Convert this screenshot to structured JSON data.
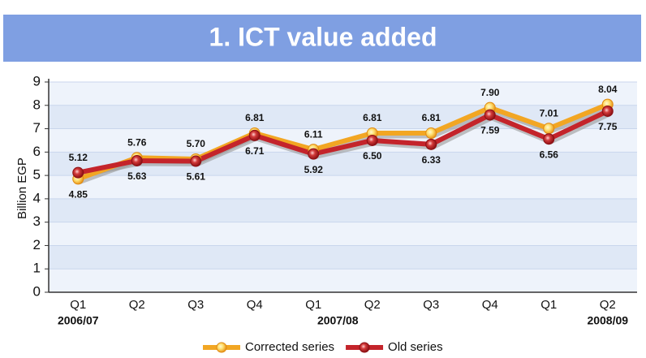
{
  "chart_data": {
    "type": "line",
    "title": "1. ICT value added",
    "y_label": "Billion EGP",
    "categories": [
      "Q1",
      "Q2",
      "Q3",
      "Q4",
      "Q1",
      "Q2",
      "Q3",
      "Q4",
      "Q1",
      "Q2"
    ],
    "year_labels": [
      "2006/07",
      null,
      null,
      null,
      "2007/08",
      null,
      null,
      null,
      null,
      "2008/09"
    ],
    "series": [
      {
        "name": "Corrected series",
        "color": "#f2a623",
        "values": [
          4.85,
          5.76,
          5.7,
          6.81,
          6.11,
          6.81,
          6.81,
          7.9,
          7.01,
          8.04
        ],
        "value_labels": [
          "4.85",
          "5.76",
          "5.70",
          "6.81",
          "6.11",
          "6.81",
          "6.81",
          "7.90",
          "7.01",
          "8.04"
        ]
      },
      {
        "name": "Old series",
        "color": "#c4242b",
        "values": [
          5.12,
          5.63,
          5.61,
          6.71,
          5.92,
          6.5,
          6.33,
          7.59,
          6.56,
          7.75
        ],
        "value_labels": [
          "5.12",
          "5.63",
          "5.61",
          "6.71",
          "5.92",
          "6.50",
          "6.33",
          "7.59",
          "6.56",
          "7.75"
        ]
      }
    ],
    "ylim": [
      0,
      9
    ],
    "yticks": [
      0,
      1,
      2,
      3,
      4,
      5,
      6,
      7,
      8,
      9
    ],
    "grid": true,
    "legend": "bottom"
  }
}
